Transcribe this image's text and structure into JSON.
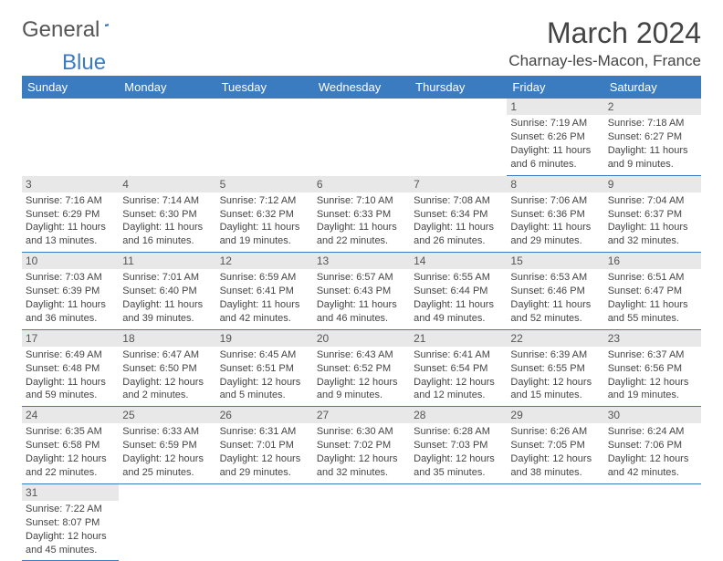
{
  "brand": {
    "part1": "General",
    "part2": "Blue"
  },
  "title": "March 2024",
  "location": "Charnay-les-Macon, France",
  "daynames": [
    "Sunday",
    "Monday",
    "Tuesday",
    "Wednesday",
    "Thursday",
    "Friday",
    "Saturday"
  ],
  "colors": {
    "header_bg": "#3b7bbf",
    "row_border": "#3b7bbf",
    "daynum_bg": "#e8e8e8"
  },
  "weeks": [
    [
      null,
      null,
      null,
      null,
      null,
      {
        "n": "1",
        "sr": "7:19 AM",
        "ss": "6:26 PM",
        "dl": "11 hours and 6 minutes."
      },
      {
        "n": "2",
        "sr": "7:18 AM",
        "ss": "6:27 PM",
        "dl": "11 hours and 9 minutes."
      }
    ],
    [
      {
        "n": "3",
        "sr": "7:16 AM",
        "ss": "6:29 PM",
        "dl": "11 hours and 13 minutes."
      },
      {
        "n": "4",
        "sr": "7:14 AM",
        "ss": "6:30 PM",
        "dl": "11 hours and 16 minutes."
      },
      {
        "n": "5",
        "sr": "7:12 AM",
        "ss": "6:32 PM",
        "dl": "11 hours and 19 minutes."
      },
      {
        "n": "6",
        "sr": "7:10 AM",
        "ss": "6:33 PM",
        "dl": "11 hours and 22 minutes."
      },
      {
        "n": "7",
        "sr": "7:08 AM",
        "ss": "6:34 PM",
        "dl": "11 hours and 26 minutes."
      },
      {
        "n": "8",
        "sr": "7:06 AM",
        "ss": "6:36 PM",
        "dl": "11 hours and 29 minutes."
      },
      {
        "n": "9",
        "sr": "7:04 AM",
        "ss": "6:37 PM",
        "dl": "11 hours and 32 minutes."
      }
    ],
    [
      {
        "n": "10",
        "sr": "7:03 AM",
        "ss": "6:39 PM",
        "dl": "11 hours and 36 minutes."
      },
      {
        "n": "11",
        "sr": "7:01 AM",
        "ss": "6:40 PM",
        "dl": "11 hours and 39 minutes."
      },
      {
        "n": "12",
        "sr": "6:59 AM",
        "ss": "6:41 PM",
        "dl": "11 hours and 42 minutes."
      },
      {
        "n": "13",
        "sr": "6:57 AM",
        "ss": "6:43 PM",
        "dl": "11 hours and 46 minutes."
      },
      {
        "n": "14",
        "sr": "6:55 AM",
        "ss": "6:44 PM",
        "dl": "11 hours and 49 minutes."
      },
      {
        "n": "15",
        "sr": "6:53 AM",
        "ss": "6:46 PM",
        "dl": "11 hours and 52 minutes."
      },
      {
        "n": "16",
        "sr": "6:51 AM",
        "ss": "6:47 PM",
        "dl": "11 hours and 55 minutes."
      }
    ],
    [
      {
        "n": "17",
        "sr": "6:49 AM",
        "ss": "6:48 PM",
        "dl": "11 hours and 59 minutes."
      },
      {
        "n": "18",
        "sr": "6:47 AM",
        "ss": "6:50 PM",
        "dl": "12 hours and 2 minutes."
      },
      {
        "n": "19",
        "sr": "6:45 AM",
        "ss": "6:51 PM",
        "dl": "12 hours and 5 minutes."
      },
      {
        "n": "20",
        "sr": "6:43 AM",
        "ss": "6:52 PM",
        "dl": "12 hours and 9 minutes."
      },
      {
        "n": "21",
        "sr": "6:41 AM",
        "ss": "6:54 PM",
        "dl": "12 hours and 12 minutes."
      },
      {
        "n": "22",
        "sr": "6:39 AM",
        "ss": "6:55 PM",
        "dl": "12 hours and 15 minutes."
      },
      {
        "n": "23",
        "sr": "6:37 AM",
        "ss": "6:56 PM",
        "dl": "12 hours and 19 minutes."
      }
    ],
    [
      {
        "n": "24",
        "sr": "6:35 AM",
        "ss": "6:58 PM",
        "dl": "12 hours and 22 minutes."
      },
      {
        "n": "25",
        "sr": "6:33 AM",
        "ss": "6:59 PM",
        "dl": "12 hours and 25 minutes."
      },
      {
        "n": "26",
        "sr": "6:31 AM",
        "ss": "7:01 PM",
        "dl": "12 hours and 29 minutes."
      },
      {
        "n": "27",
        "sr": "6:30 AM",
        "ss": "7:02 PM",
        "dl": "12 hours and 32 minutes."
      },
      {
        "n": "28",
        "sr": "6:28 AM",
        "ss": "7:03 PM",
        "dl": "12 hours and 35 minutes."
      },
      {
        "n": "29",
        "sr": "6:26 AM",
        "ss": "7:05 PM",
        "dl": "12 hours and 38 minutes."
      },
      {
        "n": "30",
        "sr": "6:24 AM",
        "ss": "7:06 PM",
        "dl": "12 hours and 42 minutes."
      }
    ],
    [
      {
        "n": "31",
        "sr": "7:22 AM",
        "ss": "8:07 PM",
        "dl": "12 hours and 45 minutes."
      },
      null,
      null,
      null,
      null,
      null,
      null
    ]
  ],
  "labels": {
    "sunrise": "Sunrise:",
    "sunset": "Sunset:",
    "daylight": "Daylight:"
  }
}
